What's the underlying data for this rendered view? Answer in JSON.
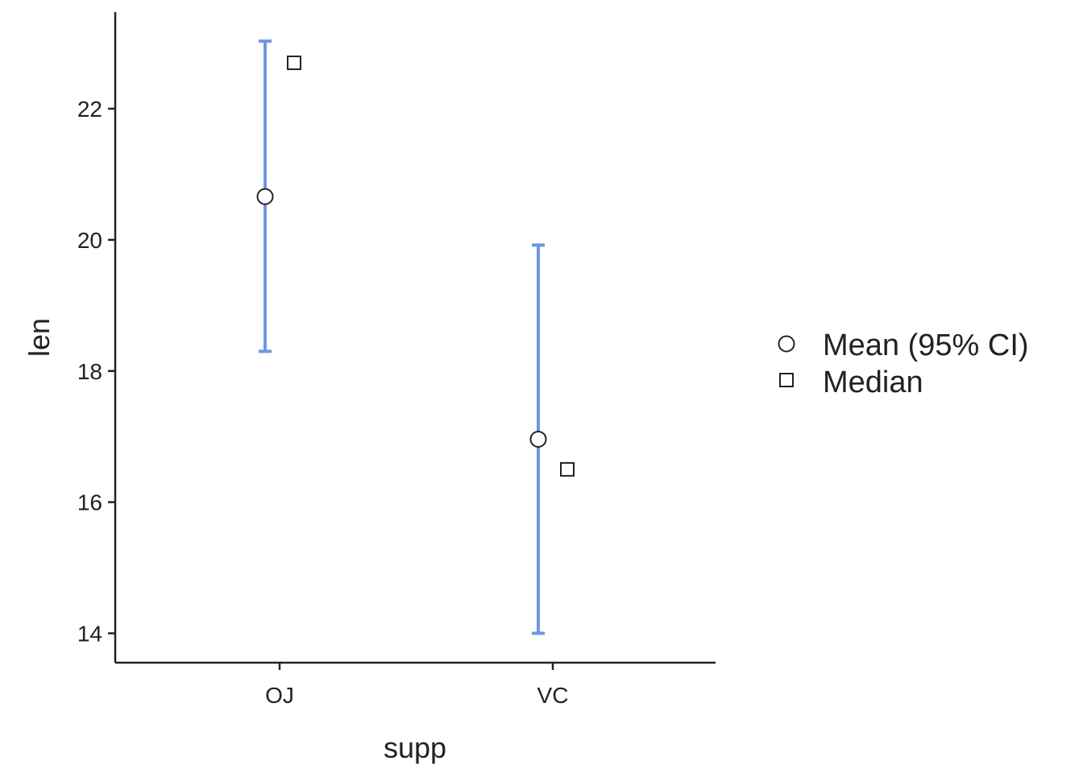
{
  "chart_data": {
    "type": "scatter",
    "xlabel": "supp",
    "ylabel": "len",
    "categories": [
      "OJ",
      "VC"
    ],
    "ylim": [
      13.5,
      23.5
    ],
    "yticks": [
      14,
      16,
      18,
      20,
      22
    ],
    "ytick_labels": [
      "14",
      "16",
      "18",
      "20",
      "22"
    ],
    "grid": false,
    "legend_position": "right",
    "series": [
      {
        "name": "Mean (95% CI)",
        "marker": "circle",
        "values": [
          20.66,
          16.96
        ],
        "ci_lower": [
          18.3,
          14.0
        ],
        "ci_upper": [
          23.03,
          19.92
        ]
      },
      {
        "name": "Median",
        "marker": "square",
        "values": [
          22.7,
          16.5
        ]
      }
    ],
    "colors": {
      "errorbar": "#6f97e0",
      "axis": "#222222",
      "marker_stroke": "#222222",
      "marker_fill": "#ffffff"
    }
  }
}
